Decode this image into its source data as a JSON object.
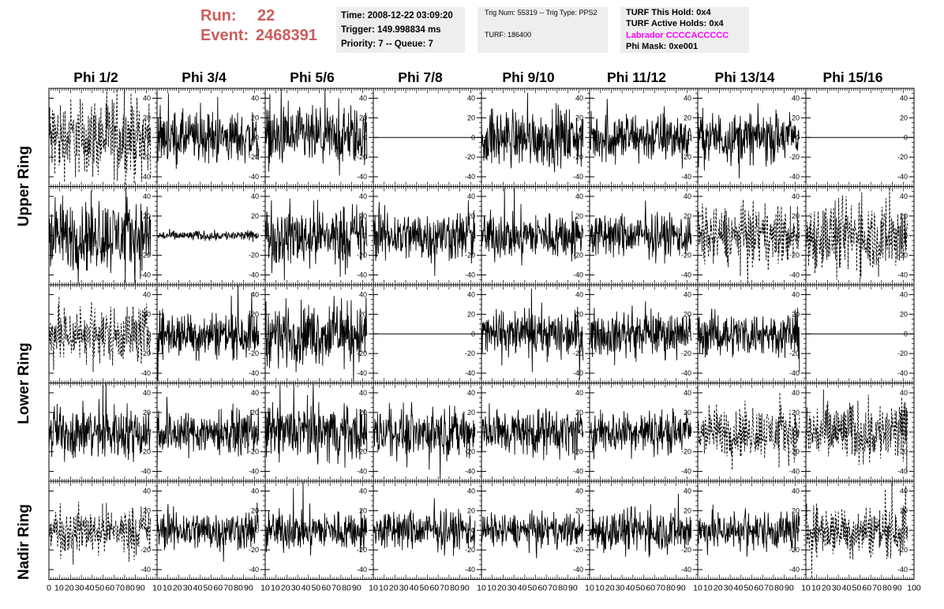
{
  "header": {
    "run_label": "Run:",
    "run_value": "22",
    "event_label": "Event:",
    "event_value": "2468391",
    "colors": {
      "run_text": "#cd5c5c",
      "labrador_text": "#ff00ff",
      "info_box_bg": "#eeeeee"
    }
  },
  "info_box_1": {
    "time": "Time: 2008-12-22 03:09:20",
    "trigger": "Trigger: 149.998834 ms",
    "priority": "Priority: 7 -- Queue: 7"
  },
  "info_box_2": {
    "trig_num": "Trig Num: 55319 -- Trig Type: PPS2",
    "turf": "TURF: 186400"
  },
  "info_box_3": {
    "this_hold": "TURF This Hold: 0x4",
    "active_holds": "TURF Active Holds: 0x4",
    "labrador": "Labrador CCCCACCCCC",
    "phi_mask": "Phi Mask: 0xe001"
  },
  "columns": [
    "Phi 1/2",
    "Phi 3/4",
    "Phi 5/6",
    "Phi 7/8",
    "Phi 9/10",
    "Phi 11/12",
    "Phi 13/14",
    "Phi 15/16"
  ],
  "ring_labels": [
    "Upper Ring",
    "Lower Ring",
    "Nadir Ring"
  ],
  "chart_data": {
    "type": "line",
    "x_range": [
      0,
      100
    ],
    "y_range": [
      -50,
      50
    ],
    "x_ticks": [
      0,
      10,
      20,
      30,
      40,
      50,
      60,
      70,
      80,
      90,
      100
    ],
    "x_tick_labels_bottom_row": [
      "0",
      "10",
      "20",
      "30",
      "40",
      "50",
      "60",
      "70",
      "80",
      "90",
      "10",
      "10",
      "20",
      "30",
      "40",
      "50",
      "60",
      "70",
      "80",
      "90",
      "10",
      "10",
      "20",
      "30",
      "40",
      "50",
      "60",
      "70",
      "80",
      "90",
      "10",
      "10",
      "20",
      "30",
      "40",
      "50",
      "60",
      "70",
      "80",
      "90",
      "10",
      "10",
      "20",
      "30",
      "40",
      "50",
      "60",
      "70",
      "80",
      "90",
      "10",
      "10",
      "20",
      "30",
      "40",
      "50",
      "60",
      "70",
      "80",
      "90",
      "10",
      "10",
      "20",
      "30",
      "40",
      "50",
      "60",
      "70",
      "80",
      "90",
      "10",
      "10",
      "20",
      "30",
      "40",
      "50",
      "60",
      "70",
      "80",
      "90",
      "100"
    ],
    "y_ticks": [
      -40,
      -20,
      0,
      20,
      40
    ],
    "y_tick_labels": [
      "-40",
      "-20",
      "0",
      "20",
      "40"
    ],
    "grid": false,
    "panels": [
      [
        "dashed",
        "solid",
        "solid",
        "flat",
        "solid",
        "solid",
        "solid",
        "flat"
      ],
      [
        "solid",
        "small",
        "solid",
        "solid",
        "solid",
        "solid",
        "dashed",
        "dashed"
      ],
      [
        "dashed",
        "solid",
        "solid",
        "flat",
        "solid",
        "solid",
        "solid",
        "flat"
      ],
      [
        "solid",
        "solid",
        "solid",
        "solid",
        "solid",
        "solid",
        "dashed",
        "dashed"
      ],
      [
        "dashed",
        "solid",
        "solid",
        "solid",
        "solid",
        "solid",
        "solid",
        "dashed"
      ]
    ],
    "panel_amplitude": [
      [
        22,
        14,
        16,
        0,
        16,
        14,
        14,
        0
      ],
      [
        20,
        3,
        17,
        14,
        13,
        12,
        16,
        20
      ],
      [
        16,
        13,
        17,
        0,
        13,
        12,
        12,
        0
      ],
      [
        15,
        12,
        15,
        13,
        13,
        12,
        14,
        17
      ],
      [
        13,
        11,
        11,
        11,
        9,
        12,
        11,
        14
      ]
    ]
  }
}
